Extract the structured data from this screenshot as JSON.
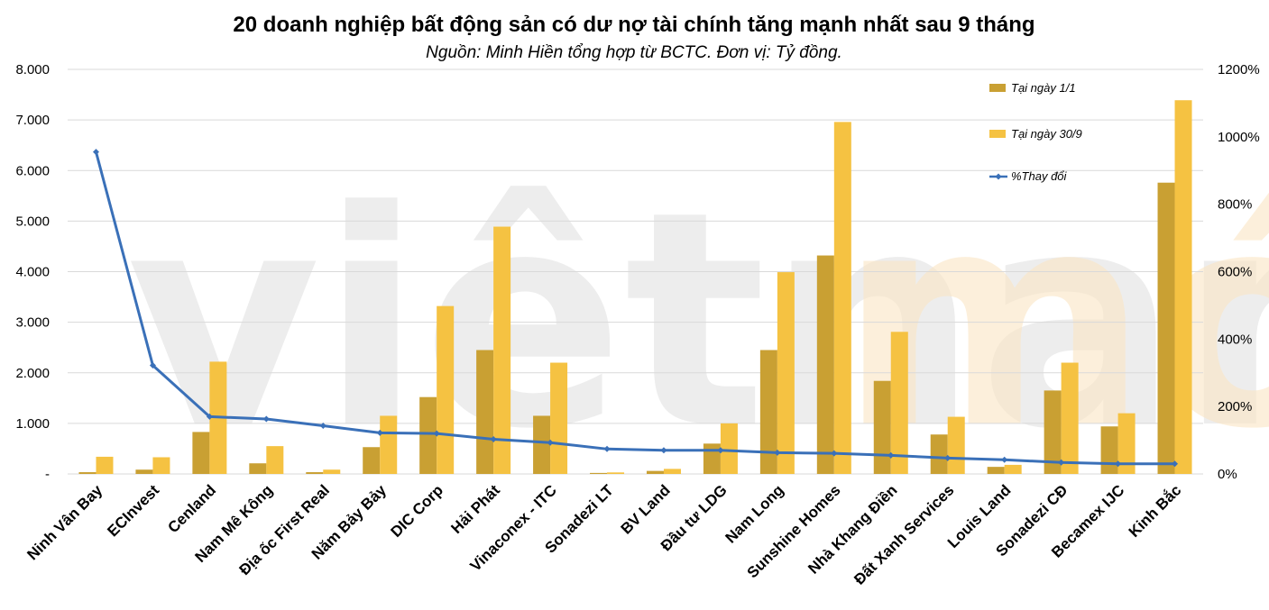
{
  "chart_data": {
    "type": "bar",
    "title": "20 doanh nghiệp bất động sản có dư nợ tài chính tăng mạnh nhất sau 9 tháng",
    "subtitle": "Nguồn: Minh Hiền tổng hợp từ BCTC. Đơn vị: Tỷ đồng.",
    "watermark": {
      "left": "viêtnam",
      "right": "mới"
    },
    "categories": [
      "Ninh Vân Bay",
      "ECInvest",
      "Cenland",
      "Nam Mê Kông",
      "Địa ốc First Real",
      "Năm Bảy Bảy",
      "DIC Corp",
      "Hải Phát",
      "Vinaconex - ITC",
      "Sonadezi LT",
      "BV Land",
      "Đầu tư LDG",
      "Nam Long",
      "Sunshine Homes",
      "Nhà Khang Điền",
      "Đất Xanh Services",
      "Louis Land",
      "Sonadezi CĐ",
      "Becamex IJC",
      "Kinh Bắc"
    ],
    "series": [
      {
        "name": "Tại ngày 1/1",
        "type": "bar",
        "axis": "left",
        "color": "#c9a033",
        "values": [
          35,
          85,
          830,
          210,
          35,
          530,
          1520,
          2450,
          1150,
          20,
          60,
          600,
          2450,
          4320,
          1840,
          780,
          140,
          1650,
          940,
          5760
        ]
      },
      {
        "name": "Tại ngày 30/9",
        "type": "bar",
        "axis": "left",
        "color": "#f5c242",
        "values": [
          340,
          330,
          2220,
          550,
          85,
          1150,
          3320,
          4890,
          2200,
          30,
          100,
          1000,
          3990,
          6960,
          2810,
          1130,
          180,
          2200,
          1200,
          7390
        ]
      },
      {
        "name": "%Thay đổi",
        "type": "line",
        "axis": "right",
        "color": "#3a70b8",
        "values": [
          955,
          322,
          170,
          163,
          143,
          122,
          120,
          103,
          93,
          74,
          70,
          70,
          63,
          61,
          55,
          47,
          42,
          34,
          30,
          30
        ]
      }
    ],
    "y_left": {
      "min": 0,
      "max": 8000,
      "ticks": [
        "-",
        "1.000",
        "2.000",
        "3.000",
        "4.000",
        "5.000",
        "6.000",
        "7.000",
        "8.000"
      ]
    },
    "y_right": {
      "min": 0,
      "max": 1200,
      "ticks": [
        "0%",
        "200%",
        "400%",
        "600%",
        "800%",
        "1000%",
        "1200%"
      ]
    },
    "legend_position": "top-right",
    "grid": true
  }
}
